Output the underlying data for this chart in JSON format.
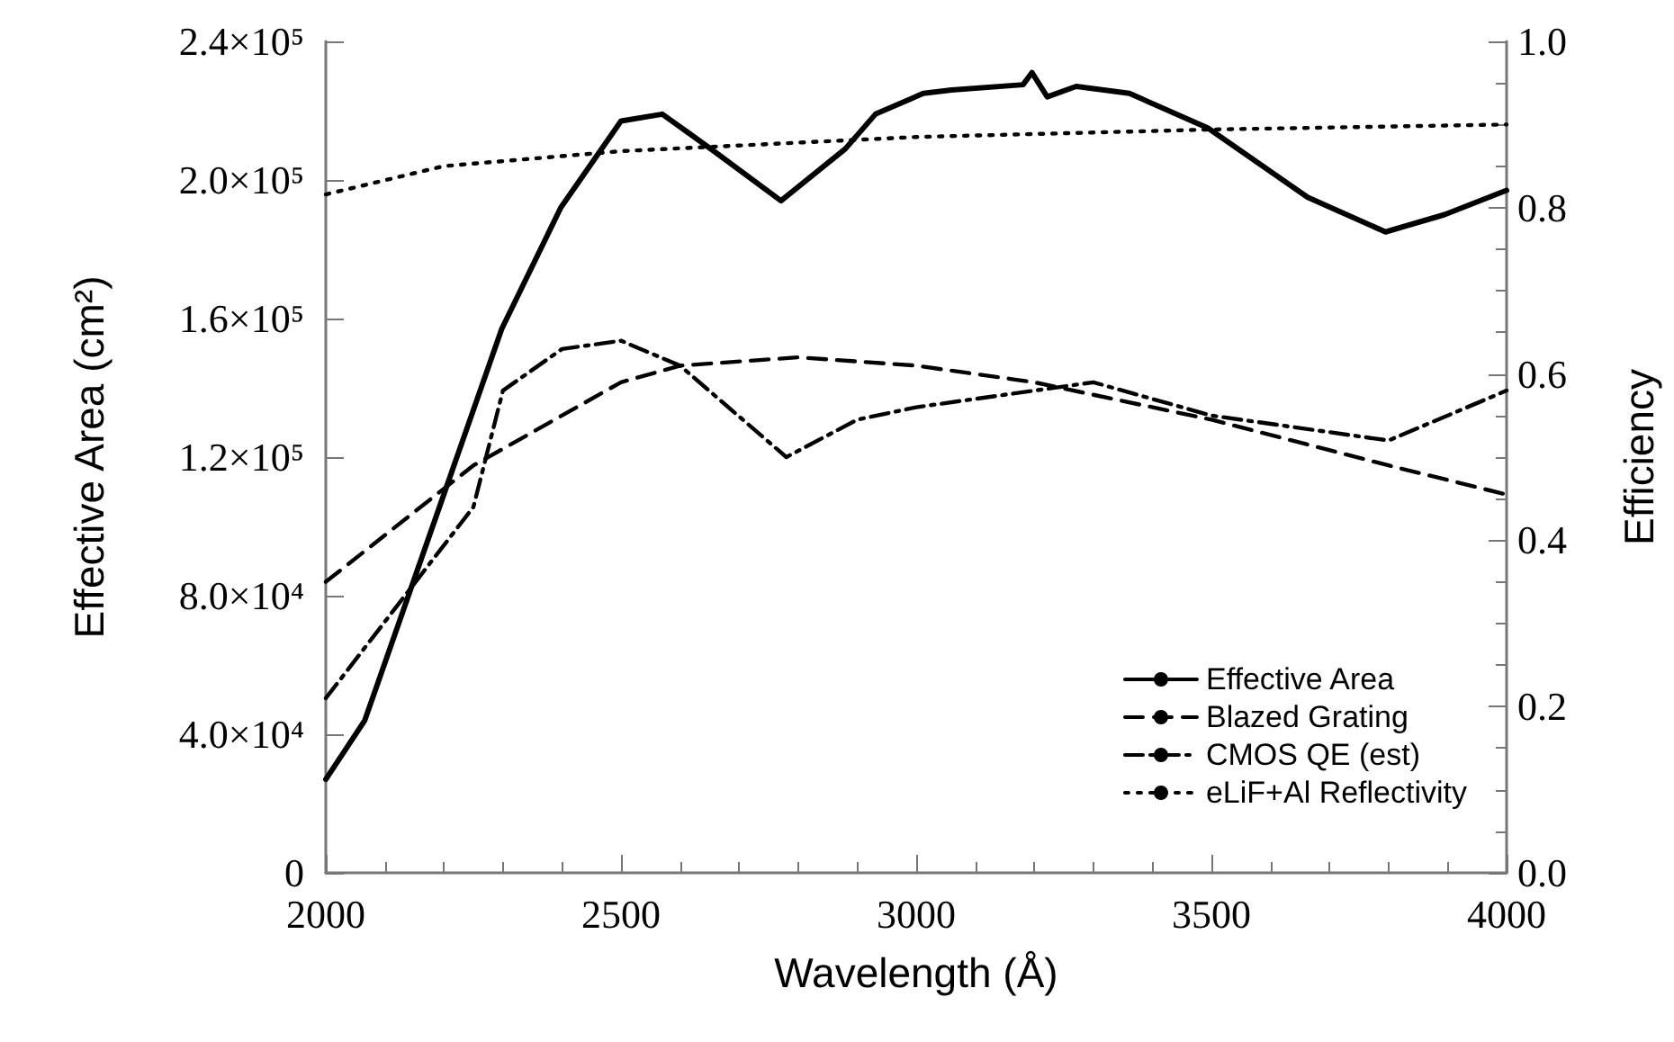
{
  "chart_data": {
    "type": "line",
    "xlabel": "Wavelength (Å)",
    "ylabel": "Effective Area (cm²)",
    "y2label": "Efficiency",
    "xlim": [
      2000,
      4000
    ],
    "xticks": [
      2000,
      2500,
      3000,
      3500,
      4000
    ],
    "ylim": [
      0,
      240000
    ],
    "yticks": [
      {
        "value": 0,
        "label": "0"
      },
      {
        "value": 40000,
        "label": "4.0×10⁴"
      },
      {
        "value": 80000,
        "label": "8.0×10⁴"
      },
      {
        "value": 120000,
        "label": "1.2×10⁵"
      },
      {
        "value": 160000,
        "label": "1.6×10⁵"
      },
      {
        "value": 200000,
        "label": "2.0×10⁵"
      },
      {
        "value": 240000,
        "label": "2.4×10⁵"
      }
    ],
    "y2lim": [
      0,
      1
    ],
    "y2ticks": [
      {
        "value": 0,
        "label": "0.0"
      },
      {
        "value": 0.2,
        "label": "0.2"
      },
      {
        "value": 0.4,
        "label": "0.4"
      },
      {
        "value": 0.6,
        "label": "0.6"
      },
      {
        "value": 0.8,
        "label": "0.8"
      },
      {
        "value": 1,
        "label": "1.0"
      }
    ],
    "grid": false,
    "legend": "bottom right",
    "marker": "none",
    "series": [
      {
        "name": "Effective Area",
        "color": "#000000",
        "line_style": "solid",
        "x": [
          2000,
          2066,
          2298,
          2398,
          2500,
          2570,
          2660,
          2771,
          2880,
          2931,
          3012,
          3060,
          3181,
          3196,
          3222,
          3271,
          3361,
          3494,
          3663,
          3795,
          3895,
          4000
        ],
        "values": [
          27000,
          44000,
          157000,
          192000,
          217000,
          219000,
          208000,
          194000,
          209000,
          219000,
          225000,
          226000,
          227500,
          231000,
          224000,
          227000,
          225000,
          215000,
          195000,
          185000,
          190000,
          197000
        ]
      },
      {
        "name": "Blazed Grating",
        "color": "#000000",
        "line_style": "dashed",
        "axis": "y2",
        "x": [
          2000,
          2250,
          2500,
          2600,
          2800,
          3000,
          3200,
          3500,
          3800,
          4000
        ],
        "values": [
          0.35,
          0.49,
          0.59,
          0.61,
          0.62,
          0.61,
          0.59,
          0.545,
          0.49,
          0.455
        ]
      },
      {
        "name": "CMOS QE (est)",
        "color": "#000000",
        "line_style": "dashdot",
        "axis": "y2",
        "x": [
          2000,
          2250,
          2300,
          2400,
          2500,
          2600,
          2780,
          2900,
          3000,
          3300,
          3500,
          3800,
          4000
        ],
        "values": [
          0.21,
          0.44,
          0.58,
          0.63,
          0.64,
          0.61,
          0.5,
          0.545,
          0.56,
          0.59,
          0.55,
          0.52,
          0.58
        ]
      },
      {
        "name": "eLiF+Al Reflectivity",
        "color": "#000000",
        "line_style": "dotted",
        "axis": "y2",
        "x": [
          2000,
          2200,
          2500,
          3000,
          3500,
          4000
        ],
        "values": [
          0.816,
          0.85,
          0.868,
          0.885,
          0.894,
          0.9
        ]
      }
    ]
  }
}
